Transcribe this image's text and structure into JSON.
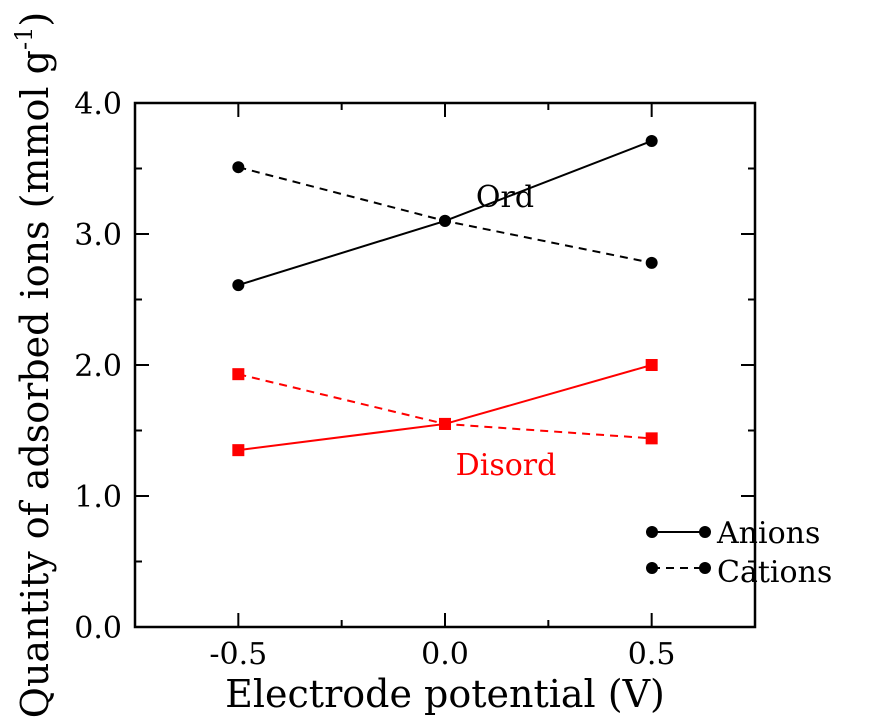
{
  "chart_data": {
    "type": "line",
    "title": "",
    "xlabel": "Electrode potential (V)",
    "ylabel_main": "Quantity of adsorbed ions (mmol g",
    "ylabel_sup": "-1",
    "ylabel_close": ")",
    "xlim": [
      -0.75,
      0.75
    ],
    "ylim": [
      0.0,
      4.0
    ],
    "x_ticks": [
      -0.5,
      0.0,
      0.5
    ],
    "x_tick_labels": [
      "-0.5",
      "0.0",
      "0.5"
    ],
    "y_ticks": [
      0.0,
      1.0,
      2.0,
      3.0,
      4.0
    ],
    "y_tick_labels": [
      "0.0",
      "1.0",
      "2.0",
      "3.0",
      "4.0"
    ],
    "grid": false,
    "legend_position": "bottom-right",
    "x": [
      -0.5,
      0.0,
      0.5
    ],
    "series": [
      {
        "group": "Ord",
        "kind": "Anions",
        "values": [
          2.61,
          3.1,
          3.71
        ],
        "color": "#000000",
        "marker": "circle",
        "dash": "solid"
      },
      {
        "group": "Ord",
        "kind": "Cations",
        "values": [
          3.51,
          3.1,
          2.78
        ],
        "color": "#000000",
        "marker": "circle",
        "dash": "dashed"
      },
      {
        "group": "Disord",
        "kind": "Anions",
        "values": [
          1.35,
          1.55,
          2.0
        ],
        "color": "#ff0000",
        "marker": "square",
        "dash": "solid"
      },
      {
        "group": "Disord",
        "kind": "Cations",
        "values": [
          1.93,
          1.55,
          1.44
        ],
        "color": "#ff0000",
        "marker": "square",
        "dash": "dashed"
      }
    ],
    "annotations": [
      {
        "text": "Ord",
        "color": "#000000"
      },
      {
        "text": "Disord",
        "color": "#ff0000"
      }
    ],
    "legend": [
      {
        "label": "Anions",
        "dash": "solid",
        "marker": "circle",
        "color": "#000000"
      },
      {
        "label": "Cations",
        "dash": "dashed",
        "marker": "circle",
        "color": "#000000"
      }
    ]
  }
}
